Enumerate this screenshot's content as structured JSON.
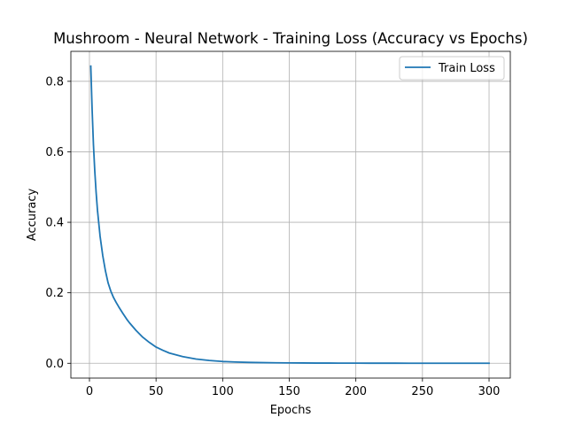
{
  "chart_data": {
    "type": "line",
    "title": "Mushroom - Neural Network - Training Loss (Accuracy vs Epochs)",
    "xlabel": "Epochs",
    "ylabel": "Accuracy",
    "xlim": [
      -13.95,
      315.95
    ],
    "ylim": [
      -0.042,
      0.885
    ],
    "xticks": [
      0,
      50,
      100,
      150,
      200,
      250,
      300
    ],
    "xtick_labels": [
      "0",
      "50",
      "100",
      "150",
      "200",
      "250",
      "300"
    ],
    "yticks": [
      0.0,
      0.2,
      0.4,
      0.6,
      0.8
    ],
    "ytick_labels": [
      "0.0",
      "0.2",
      "0.4",
      "0.6",
      "0.8"
    ],
    "grid": true,
    "legend_position": "top-right",
    "series": [
      {
        "name": "Train Loss",
        "color": "#1f77b4",
        "x": [
          1,
          2,
          3,
          4,
          5,
          6,
          8,
          10,
          12,
          14,
          16,
          18,
          20,
          22,
          25,
          28,
          30,
          35,
          40,
          45,
          50,
          55,
          60,
          70,
          80,
          90,
          100,
          110,
          120,
          130,
          140,
          150,
          160,
          170,
          180,
          190,
          200,
          210,
          220,
          230,
          240,
          250,
          260,
          270,
          280,
          290,
          300
        ],
        "values": [
          0.843,
          0.72,
          0.62,
          0.545,
          0.485,
          0.435,
          0.36,
          0.305,
          0.262,
          0.228,
          0.205,
          0.187,
          0.173,
          0.16,
          0.142,
          0.125,
          0.115,
          0.093,
          0.074,
          0.059,
          0.046,
          0.037,
          0.029,
          0.019,
          0.012,
          0.008,
          0.005,
          0.0035,
          0.0025,
          0.0018,
          0.0013,
          0.001,
          0.0008,
          0.0006,
          0.0005,
          0.0004,
          0.0003,
          0.00025,
          0.0002,
          0.00018,
          0.00015,
          0.00013,
          0.00011,
          0.0001,
          9e-05,
          8e-05,
          7e-05
        ]
      }
    ]
  }
}
